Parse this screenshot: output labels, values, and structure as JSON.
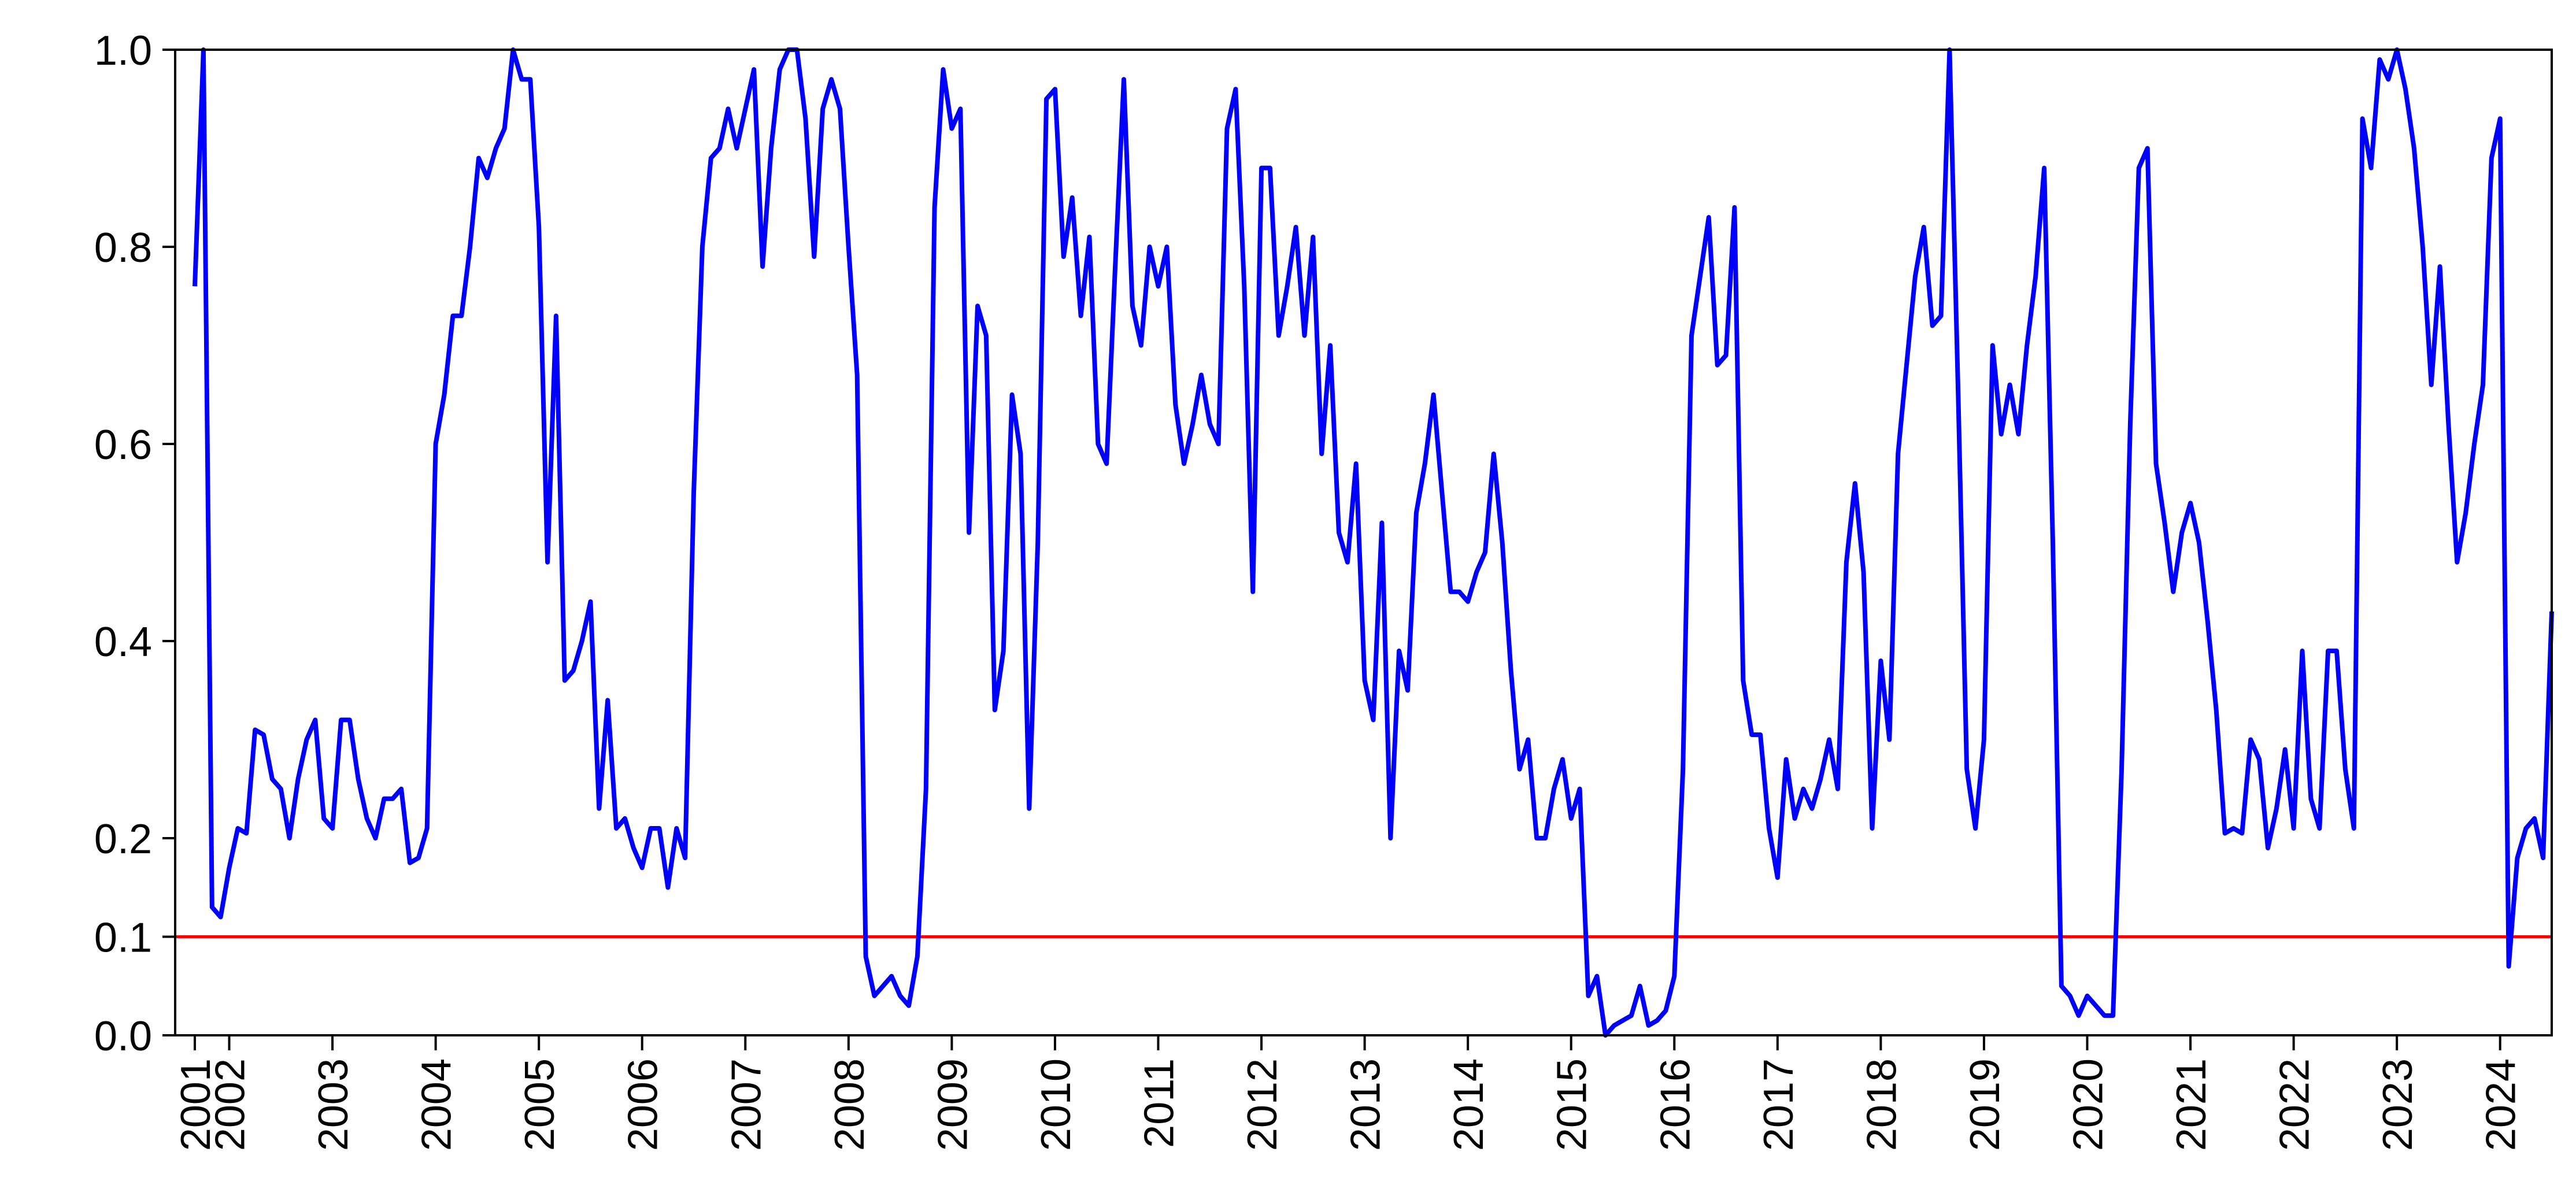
{
  "chart_data": {
    "type": "line",
    "categories": [
      "2001",
      null,
      null,
      null,
      "2002",
      null,
      null,
      null,
      null,
      null,
      null,
      null,
      null,
      null,
      null,
      null,
      "2003",
      null,
      null,
      null,
      null,
      null,
      null,
      null,
      null,
      null,
      null,
      null,
      "2004",
      null,
      null,
      null,
      null,
      null,
      null,
      null,
      null,
      null,
      null,
      null,
      "2005",
      null,
      null,
      null,
      null,
      null,
      null,
      null,
      null,
      null,
      null,
      null,
      "2006",
      null,
      null,
      null,
      null,
      null,
      null,
      null,
      null,
      null,
      null,
      null,
      "2007",
      null,
      null,
      null,
      null,
      null,
      null,
      null,
      null,
      null,
      null,
      null,
      "2008",
      null,
      null,
      null,
      null,
      null,
      null,
      null,
      null,
      null,
      null,
      null,
      "2009",
      null,
      null,
      null,
      null,
      null,
      null,
      null,
      null,
      null,
      null,
      null,
      "2010",
      null,
      null,
      null,
      null,
      null,
      null,
      null,
      null,
      null,
      null,
      null,
      "2011",
      null,
      null,
      null,
      null,
      null,
      null,
      null,
      null,
      null,
      null,
      null,
      "2012",
      null,
      null,
      null,
      null,
      null,
      null,
      null,
      null,
      null,
      null,
      null,
      "2013",
      null,
      null,
      null,
      null,
      null,
      null,
      null,
      null,
      null,
      null,
      null,
      "2014",
      null,
      null,
      null,
      null,
      null,
      null,
      null,
      null,
      null,
      null,
      null,
      "2015",
      null,
      null,
      null,
      null,
      null,
      null,
      null,
      null,
      null,
      null,
      null,
      "2016",
      null,
      null,
      null,
      null,
      null,
      null,
      null,
      null,
      null,
      null,
      null,
      "2017",
      null,
      null,
      null,
      null,
      null,
      null,
      null,
      null,
      null,
      null,
      null,
      "2018",
      null,
      null,
      null,
      null,
      null,
      null,
      null,
      null,
      null,
      null,
      null,
      "2019",
      null,
      null,
      null,
      null,
      null,
      null,
      null,
      null,
      null,
      null,
      null,
      "2020",
      null,
      null,
      null,
      null,
      null,
      null,
      null,
      null,
      null,
      null,
      null,
      "2021",
      null,
      null,
      null,
      null,
      null,
      null,
      null,
      null,
      null,
      null,
      null,
      "2022",
      null,
      null,
      null,
      null,
      null,
      null,
      null,
      null,
      null,
      null,
      null,
      "2023",
      null,
      null,
      null,
      null,
      null,
      null,
      null,
      null,
      null,
      null,
      null,
      "2024",
      null,
      null,
      null,
      null,
      null,
      null
    ],
    "values": [
      0.76,
      1.0,
      0.13,
      0.12,
      0.17,
      0.21,
      0.205,
      0.31,
      0.305,
      0.26,
      0.25,
      0.2,
      0.26,
      0.3,
      0.32,
      0.22,
      0.21,
      0.32,
      0.32,
      0.26,
      0.22,
      0.2,
      0.24,
      0.24,
      0.25,
      0.175,
      0.18,
      0.21,
      0.6,
      0.65,
      0.73,
      0.73,
      0.8,
      0.89,
      0.87,
      0.9,
      0.92,
      1.0,
      0.97,
      0.97,
      0.82,
      0.48,
      0.73,
      0.36,
      0.37,
      0.4,
      0.44,
      0.23,
      0.34,
      0.21,
      0.22,
      0.19,
      0.17,
      0.21,
      0.21,
      0.15,
      0.21,
      0.18,
      0.55,
      0.8,
      0.89,
      0.9,
      0.94,
      0.9,
      0.94,
      0.98,
      0.78,
      0.9,
      0.98,
      1.0,
      1.0,
      0.93,
      0.79,
      0.94,
      0.97,
      0.94,
      0.8,
      0.67,
      0.08,
      0.04,
      0.05,
      0.06,
      0.04,
      0.03,
      0.08,
      0.25,
      0.84,
      0.98,
      0.92,
      0.94,
      0.51,
      0.74,
      0.71,
      0.33,
      0.39,
      0.65,
      0.59,
      0.23,
      0.5,
      0.95,
      0.96,
      0.79,
      0.85,
      0.73,
      0.81,
      0.6,
      0.58,
      0.78,
      0.97,
      0.74,
      0.7,
      0.8,
      0.76,
      0.8,
      0.64,
      0.58,
      0.62,
      0.67,
      0.62,
      0.6,
      0.92,
      0.96,
      0.76,
      0.45,
      0.88,
      0.88,
      0.71,
      0.76,
      0.82,
      0.71,
      0.81,
      0.59,
      0.7,
      0.51,
      0.48,
      0.58,
      0.36,
      0.32,
      0.52,
      0.2,
      0.39,
      0.35,
      0.53,
      0.58,
      0.65,
      0.55,
      0.45,
      0.45,
      0.44,
      0.47,
      0.49,
      0.59,
      0.5,
      0.37,
      0.27,
      0.3,
      0.2,
      0.2,
      0.25,
      0.28,
      0.22,
      0.25,
      0.04,
      0.06,
      0.0,
      0.01,
      0.015,
      0.02,
      0.05,
      0.01,
      0.015,
      0.025,
      0.06,
      0.27,
      0.71,
      0.77,
      0.83,
      0.68,
      0.69,
      0.84,
      0.36,
      0.305,
      0.305,
      0.21,
      0.16,
      0.28,
      0.22,
      0.25,
      0.23,
      0.26,
      0.3,
      0.25,
      0.48,
      0.56,
      0.47,
      0.21,
      0.38,
      0.3,
      0.59,
      0.68,
      0.77,
      0.82,
      0.72,
      0.73,
      1.0,
      0.65,
      0.27,
      0.21,
      0.3,
      0.7,
      0.61,
      0.66,
      0.61,
      0.7,
      0.77,
      0.88,
      0.5,
      0.05,
      0.04,
      0.02,
      0.04,
      0.03,
      0.02,
      0.02,
      0.27,
      0.62,
      0.88,
      0.9,
      0.58,
      0.52,
      0.45,
      0.51,
      0.54,
      0.5,
      0.42,
      0.33,
      0.205,
      0.21,
      0.205,
      0.3,
      0.28,
      0.19,
      0.23,
      0.29,
      0.21,
      0.39,
      0.24,
      0.21,
      0.39,
      0.39,
      0.27,
      0.21,
      0.93,
      0.88,
      0.99,
      0.97,
      1.0,
      0.96,
      0.9,
      0.8,
      0.66,
      0.78,
      0.62,
      0.48,
      0.53,
      0.6,
      0.66,
      0.89,
      0.93,
      0.07,
      0.18,
      0.21,
      0.22,
      0.18,
      0.43
    ],
    "color": "#0000ff",
    "reference_line": {
      "value": 0.1,
      "color": "#ff0000"
    },
    "ylim": [
      0,
      1
    ],
    "yticks": [
      {
        "value": 0,
        "label": "0.0"
      },
      0.1,
      0.2,
      0.4,
      0.6,
      0.8,
      {
        "value": 1,
        "label": "1.0"
      }
    ]
  }
}
